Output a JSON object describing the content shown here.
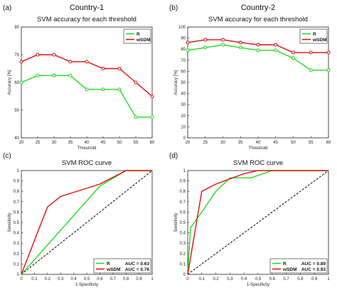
{
  "figure": {
    "countries": [
      "Country-1",
      "Country-2"
    ],
    "panel_labels": [
      "(a)",
      "(b)",
      "(c)",
      "(d)"
    ]
  },
  "colors": {
    "R": "#22dd22",
    "wSDM": "#dd1111",
    "diagonal": "#000000"
  },
  "chart_data": [
    {
      "type": "line",
      "title": "SVM accuracy for each threshold",
      "xlabel": "Threshold",
      "ylabel": "Accuracy [%]",
      "xlim": [
        20,
        60
      ],
      "ylim": [
        40,
        80
      ],
      "xticks": [
        20,
        25,
        30,
        35,
        40,
        45,
        50,
        55,
        60
      ],
      "yticks": [
        40,
        50,
        60,
        70,
        80
      ],
      "grid": false,
      "legend": "top-right",
      "x": [
        20,
        25,
        30,
        35,
        40,
        45,
        50,
        55,
        60
      ],
      "series": [
        {
          "name": "R",
          "values": [
            60,
            62.5,
            62.5,
            62.5,
            57.5,
            57.5,
            57.5,
            47.5,
            47.5
          ]
        },
        {
          "name": "wSDM",
          "values": [
            67.5,
            70,
            70,
            67.5,
            67.5,
            65,
            65,
            60,
            55
          ]
        }
      ]
    },
    {
      "type": "line",
      "title": "SVM accuracy for each threshold",
      "xlabel": "Threshold",
      "ylabel": "Accuracy [%]",
      "xlim": [
        20,
        60
      ],
      "ylim": [
        0,
        100
      ],
      "xticks": [
        20,
        25,
        30,
        35,
        40,
        45,
        50,
        55,
        60
      ],
      "yticks": [
        0,
        10,
        20,
        30,
        40,
        50,
        60,
        70,
        80,
        90,
        100
      ],
      "grid": false,
      "legend": "top-right",
      "x": [
        20,
        25,
        30,
        35,
        40,
        45,
        50,
        55,
        60
      ],
      "series": [
        {
          "name": "R",
          "values": [
            79,
            81.5,
            84,
            81.5,
            79,
            79,
            72,
            61,
            61
          ]
        },
        {
          "name": "wSDM",
          "values": [
            86,
            88.5,
            88.5,
            86,
            84,
            84,
            77,
            77,
            77
          ]
        }
      ]
    },
    {
      "type": "line",
      "title": "SVM ROC curve",
      "xlabel": "1-Specificity",
      "ylabel": "Sensitivity",
      "xlim": [
        0,
        1
      ],
      "ylim": [
        0,
        1
      ],
      "xticks": [
        0,
        0.1,
        0.2,
        0.3,
        0.4,
        0.5,
        0.6,
        0.7,
        0.8,
        0.9,
        1
      ],
      "yticks": [
        0,
        0.1,
        0.2,
        0.3,
        0.4,
        0.5,
        0.6,
        0.7,
        0.8,
        0.9,
        1
      ],
      "grid": false,
      "legend": "bottom-right",
      "diagonal": true,
      "series": [
        {
          "name": "R",
          "auc": "AUC = 0.63",
          "points": [
            [
              0,
              0
            ],
            [
              0.6,
              0.85
            ],
            [
              0.8,
              1
            ],
            [
              1,
              1
            ]
          ]
        },
        {
          "name": "wSDM",
          "auc": "AUC = 0.76",
          "points": [
            [
              0,
              0
            ],
            [
              0.2,
              0.65
            ],
            [
              0.3,
              0.75
            ],
            [
              0.6,
              0.87
            ],
            [
              0.8,
              1
            ],
            [
              1,
              1
            ]
          ]
        }
      ]
    },
    {
      "type": "line",
      "title": "SVM ROC curve",
      "xlabel": "1-Specificity",
      "ylabel": "Sensitivity",
      "xlim": [
        0,
        1
      ],
      "ylim": [
        0,
        1
      ],
      "xticks": [
        0,
        0.1,
        0.2,
        0.3,
        0.4,
        0.5,
        0.6,
        0.7,
        0.8,
        0.9,
        1
      ],
      "yticks": [
        0,
        0.1,
        0.2,
        0.3,
        0.4,
        0.5,
        0.6,
        0.7,
        0.8,
        0.9,
        1
      ],
      "grid": false,
      "legend": "bottom-right",
      "diagonal": true,
      "series": [
        {
          "name": "R",
          "auc": "AUC = 0.89",
          "points": [
            [
              0,
              0
            ],
            [
              0.02,
              0.45
            ],
            [
              0.1,
              0.6
            ],
            [
              0.2,
              0.8
            ],
            [
              0.3,
              0.93
            ],
            [
              0.45,
              0.93
            ],
            [
              0.6,
              1
            ],
            [
              1,
              1
            ]
          ]
        },
        {
          "name": "wSDM",
          "auc": "AUC = 0.93",
          "points": [
            [
              0,
              0
            ],
            [
              0.1,
              0.8
            ],
            [
              0.2,
              0.87
            ],
            [
              0.4,
              0.97
            ],
            [
              0.5,
              1
            ],
            [
              1,
              1
            ]
          ]
        }
      ]
    }
  ]
}
